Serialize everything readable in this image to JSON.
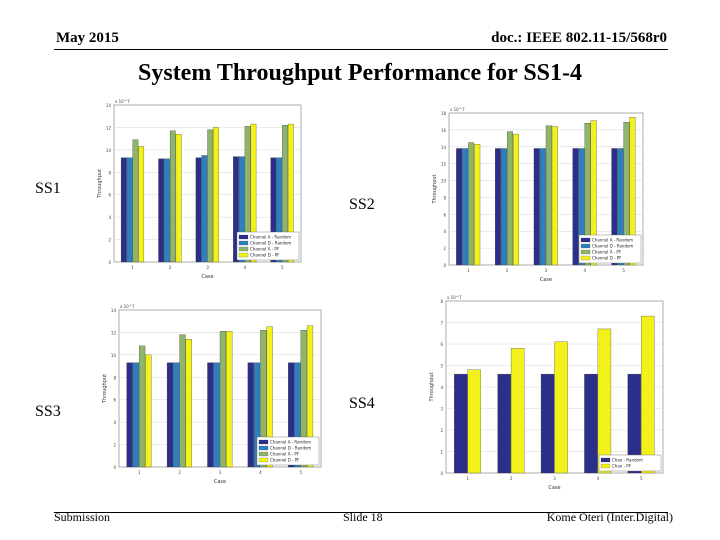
{
  "header": {
    "date": "May 2015",
    "doc": "doc.: IEEE 802.11-15/568r0"
  },
  "title": "System Throughput Performance for SS1-4",
  "labels": {
    "ss1": "SS1",
    "ss2": "SS2",
    "ss3": "SS3",
    "ss4": "SS4"
  },
  "footer": {
    "left": "Submission",
    "center": "Slide 18",
    "right": "Kome Oteri (Inter.Digital)"
  },
  "colors": {
    "s1": "#2c2f8a",
    "s2": "#2e7fc0",
    "s3": "#8fb56a",
    "s4": "#f2f21a",
    "gridline": "#d8d8d8"
  },
  "chart_data": [
    {
      "id": "ss1",
      "type": "bar",
      "title": "",
      "xlabel": "Case",
      "ylabel": "Throughput",
      "exponent": "x 10^7",
      "categories": [
        "1",
        "2",
        "3",
        "4",
        "5"
      ],
      "ylim": [
        0,
        14
      ],
      "yticks": [
        0,
        2,
        4,
        6,
        8,
        10,
        12,
        14
      ],
      "legend_position": "bottom-right",
      "series": [
        {
          "name": "Channel A - Random",
          "values": [
            9.3,
            9.2,
            9.3,
            9.4,
            9.3
          ]
        },
        {
          "name": "Channel D - Random",
          "values": [
            9.3,
            9.2,
            9.5,
            9.4,
            9.3
          ]
        },
        {
          "name": "Channel A - PF",
          "values": [
            10.9,
            11.7,
            11.8,
            12.1,
            12.2
          ]
        },
        {
          "name": "Channel D - PF",
          "values": [
            10.3,
            11.4,
            12.0,
            12.3,
            12.3
          ]
        }
      ]
    },
    {
      "id": "ss2",
      "type": "bar",
      "title": "",
      "xlabel": "Case",
      "ylabel": "Throughput",
      "exponent": "x 10^7",
      "categories": [
        "1",
        "2",
        "3",
        "4",
        "5"
      ],
      "ylim": [
        0,
        18
      ],
      "yticks": [
        0,
        2,
        4,
        6,
        8,
        10,
        12,
        14,
        16,
        18
      ],
      "legend_position": "bottom-right",
      "series": [
        {
          "name": "Channel A - Random",
          "values": [
            13.8,
            13.8,
            13.8,
            13.8,
            13.8
          ]
        },
        {
          "name": "Channel D - Random",
          "values": [
            13.8,
            13.8,
            13.8,
            13.8,
            13.8
          ]
        },
        {
          "name": "Channel A - PF",
          "values": [
            14.5,
            15.8,
            16.5,
            16.8,
            16.9
          ]
        },
        {
          "name": "Channel D - PF",
          "values": [
            14.3,
            15.5,
            16.4,
            17.1,
            17.5
          ]
        }
      ]
    },
    {
      "id": "ss3",
      "type": "bar",
      "title": "",
      "xlabel": "Case",
      "ylabel": "Throughput",
      "exponent": "x 10^7",
      "categories": [
        "1",
        "2",
        "3",
        "4",
        "5"
      ],
      "ylim": [
        0,
        14
      ],
      "yticks": [
        0,
        2,
        4,
        6,
        8,
        10,
        12,
        14
      ],
      "legend_position": "bottom-right",
      "series": [
        {
          "name": "Channel A - Random",
          "values": [
            9.3,
            9.3,
            9.3,
            9.3,
            9.3
          ]
        },
        {
          "name": "Channel D - Random",
          "values": [
            9.3,
            9.3,
            9.3,
            9.3,
            9.3
          ]
        },
        {
          "name": "Channel A - PF",
          "values": [
            10.8,
            11.8,
            12.1,
            12.2,
            12.2
          ]
        },
        {
          "name": "Channel D - PF",
          "values": [
            10.0,
            11.4,
            12.1,
            12.5,
            12.6
          ]
        }
      ]
    },
    {
      "id": "ss4",
      "type": "bar",
      "title": "",
      "xlabel": "Case",
      "ylabel": "Throughput",
      "exponent": "x 10^7",
      "categories": [
        "1",
        "2",
        "3",
        "4",
        "5"
      ],
      "ylim": [
        0,
        8
      ],
      "yticks": [
        0,
        1,
        2,
        3,
        4,
        5,
        6,
        7,
        8
      ],
      "legend_position": "bottom-right",
      "series": [
        {
          "name": "Chan - Random",
          "values": [
            4.6,
            4.6,
            4.6,
            4.6,
            4.6
          ]
        },
        {
          "name": "Chan - PF",
          "values": [
            4.8,
            5.8,
            6.1,
            6.7,
            7.3
          ]
        }
      ]
    }
  ]
}
